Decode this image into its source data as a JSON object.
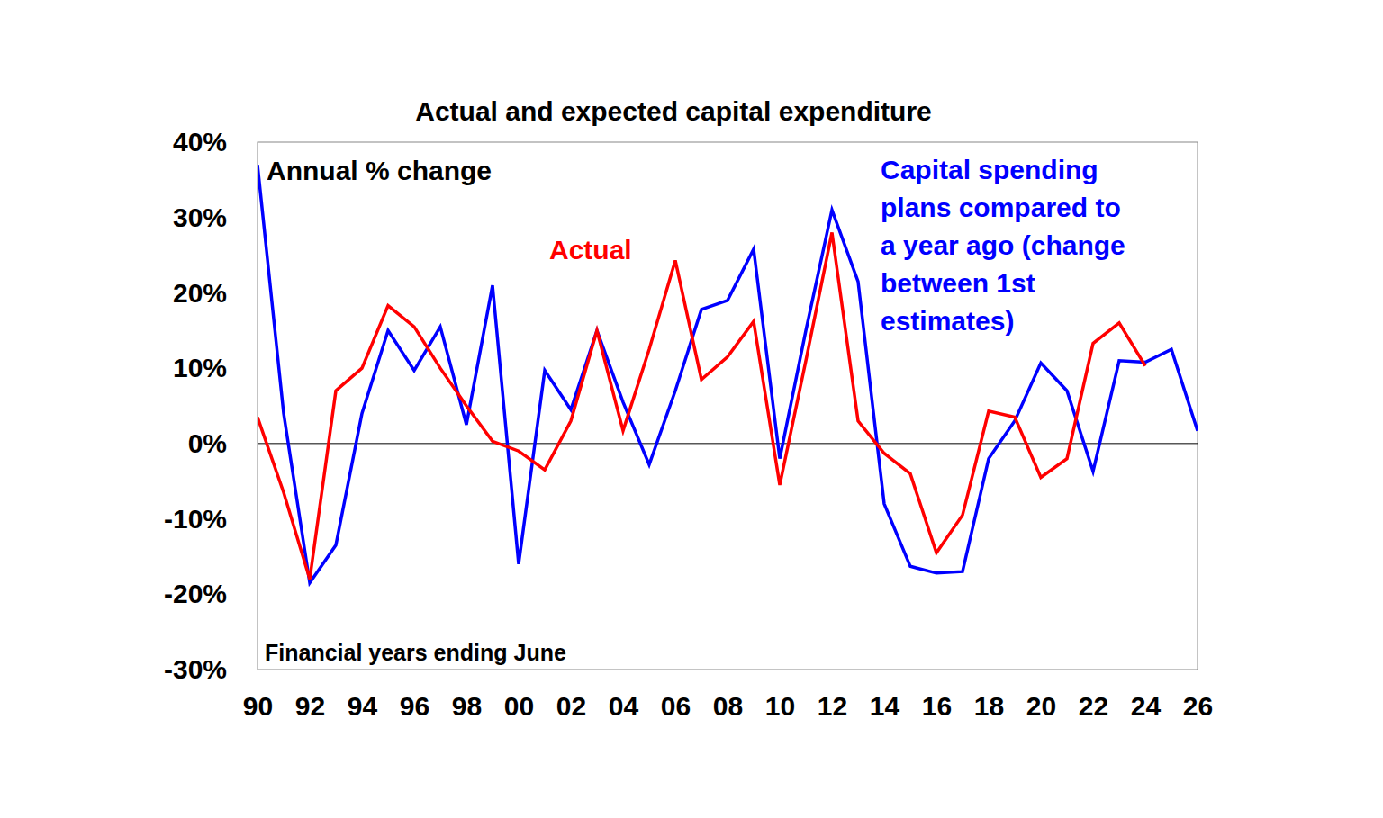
{
  "chart_data": {
    "type": "line",
    "title": "Actual and expected capital expenditure",
    "annotations": [
      "Annual % change",
      "Financial years ending June"
    ],
    "categories": [
      "90",
      null,
      "92",
      null,
      "94",
      null,
      "96",
      null,
      "98",
      null,
      "00",
      null,
      "02",
      null,
      "04",
      null,
      "06",
      null,
      "08",
      null,
      "10",
      null,
      "12",
      null,
      "14",
      null,
      "16",
      null,
      "18",
      null,
      "20",
      null,
      "22",
      null,
      "24",
      null,
      "26"
    ],
    "series": [
      {
        "name": "Capital spending\nplans compared to\na year ago (change\nbetween 1st\nestimates)",
        "color": "#0000ff",
        "values": [
          37,
          4,
          -18.5,
          -13.5,
          4,
          15,
          9.7,
          15.5,
          2.5,
          21,
          -16,
          9.7,
          4.5,
          15,
          5.5,
          -2.8,
          7,
          17.8,
          19,
          25.8,
          -2,
          15,
          31,
          21.5,
          -8,
          -16.3,
          -17.2,
          -17,
          -2,
          3,
          10.7,
          7,
          -3.7,
          11,
          10.8,
          12.5,
          1.7
        ]
      },
      {
        "name": "Actual",
        "color": "#ff0000",
        "values": [
          3.5,
          -6.5,
          -18,
          7,
          10,
          18.3,
          15.5,
          10,
          5,
          0.3,
          -1,
          -3.5,
          3,
          15,
          1.7,
          12.5,
          24.3,
          8.5,
          11.5,
          16.2,
          -5.5,
          11,
          28,
          3,
          -1.3,
          -4,
          -14.5,
          -9.5,
          4.3,
          3.5,
          -4.5,
          -2,
          13.3,
          16,
          10.3,
          null,
          null
        ]
      }
    ],
    "ylim": [
      -30,
      40
    ],
    "yticks": [
      {
        "value": -30,
        "label": "-30%"
      },
      {
        "value": -20,
        "label": "-20%"
      },
      {
        "value": -10,
        "label": "-10%"
      },
      {
        "value": 0,
        "label": "0%"
      },
      {
        "value": 10,
        "label": "10%"
      },
      {
        "value": 20,
        "label": "20%"
      },
      {
        "value": 30,
        "label": "30%"
      },
      {
        "value": 40,
        "label": "40%"
      }
    ],
    "grid": false
  }
}
